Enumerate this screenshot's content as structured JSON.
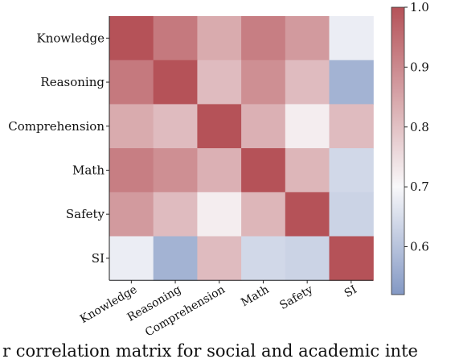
{
  "chart_data": {
    "type": "heatmap",
    "title": "",
    "xlabel": "",
    "ylabel": "",
    "rows": [
      "Knowledge",
      "Reasoning",
      "Comprehension",
      "Math",
      "Safety",
      "SI"
    ],
    "cols": [
      "Knowledge",
      "Reasoning",
      "Comprehension",
      "Math",
      "Safety",
      "SI"
    ],
    "values": [
      [
        1.0,
        0.93,
        0.84,
        0.92,
        0.87,
        0.68
      ],
      [
        0.93,
        1.0,
        0.81,
        0.89,
        0.81,
        0.57
      ],
      [
        0.84,
        0.81,
        1.0,
        0.83,
        0.72,
        0.81
      ],
      [
        0.92,
        0.89,
        0.83,
        1.0,
        0.82,
        0.64
      ],
      [
        0.87,
        0.81,
        0.72,
        0.82,
        1.0,
        0.63
      ],
      [
        0.68,
        0.57,
        0.81,
        0.64,
        0.63,
        1.0
      ]
    ],
    "colorbar": {
      "min": 0.52,
      "max": 1.0,
      "center": 0.7,
      "ticks": [
        0.6,
        0.7,
        0.8,
        0.9,
        1.0
      ],
      "tick_labels": [
        "0.6",
        "0.7",
        "0.8",
        "0.9",
        "1.0"
      ],
      "low_color": "#8398c4",
      "mid_color": "#f8f8fa",
      "high_color": "#b55258"
    },
    "legend": "colorbar-right"
  },
  "caption": {
    "text": "r correlation matrix for social and academic inte"
  }
}
